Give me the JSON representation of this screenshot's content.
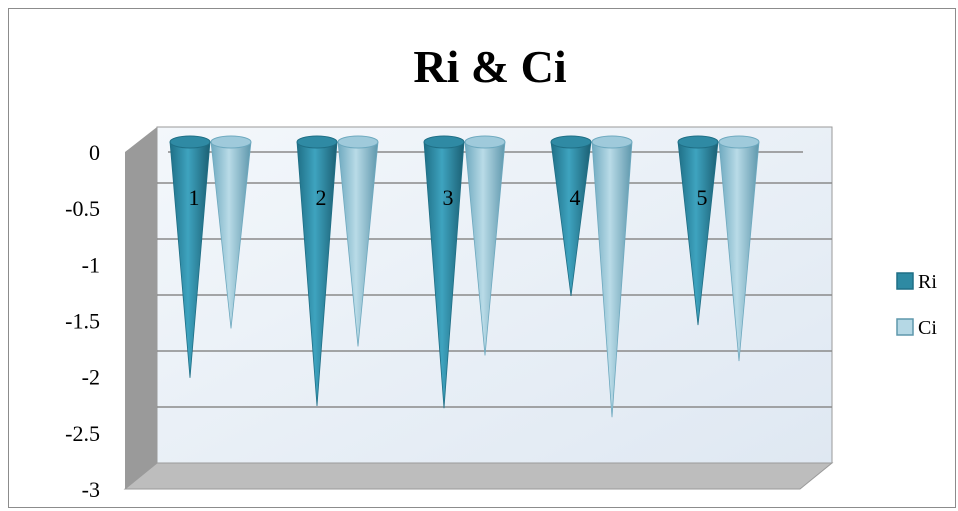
{
  "chart_data": {
    "type": "bar",
    "bar_shape": "cone",
    "title": "Ri & Ci",
    "xlabel": "",
    "ylabel": "",
    "categories": [
      "1",
      "2",
      "3",
      "4",
      "5"
    ],
    "series": [
      {
        "name": "Ri",
        "values": [
          -2.1,
          -2.35,
          -2.37,
          -1.37,
          -1.63
        ],
        "color": "#2e8aa3"
      },
      {
        "name": "Ci",
        "values": [
          -1.66,
          -1.82,
          -1.9,
          -2.45,
          -1.95
        ],
        "color": "#8cbfd2"
      }
    ],
    "ylim": [
      -3,
      0
    ],
    "yticks": [
      "0",
      "-0.5",
      "-1",
      "-1.5",
      "-2",
      "-2.5",
      "-3"
    ],
    "grid": true,
    "legend": "right",
    "colors": {
      "plot_bg": "#e8f0f8",
      "wall_side": "#9a9a9a",
      "floor": "#bdbdbd",
      "grid": "#8a8a8a"
    }
  }
}
